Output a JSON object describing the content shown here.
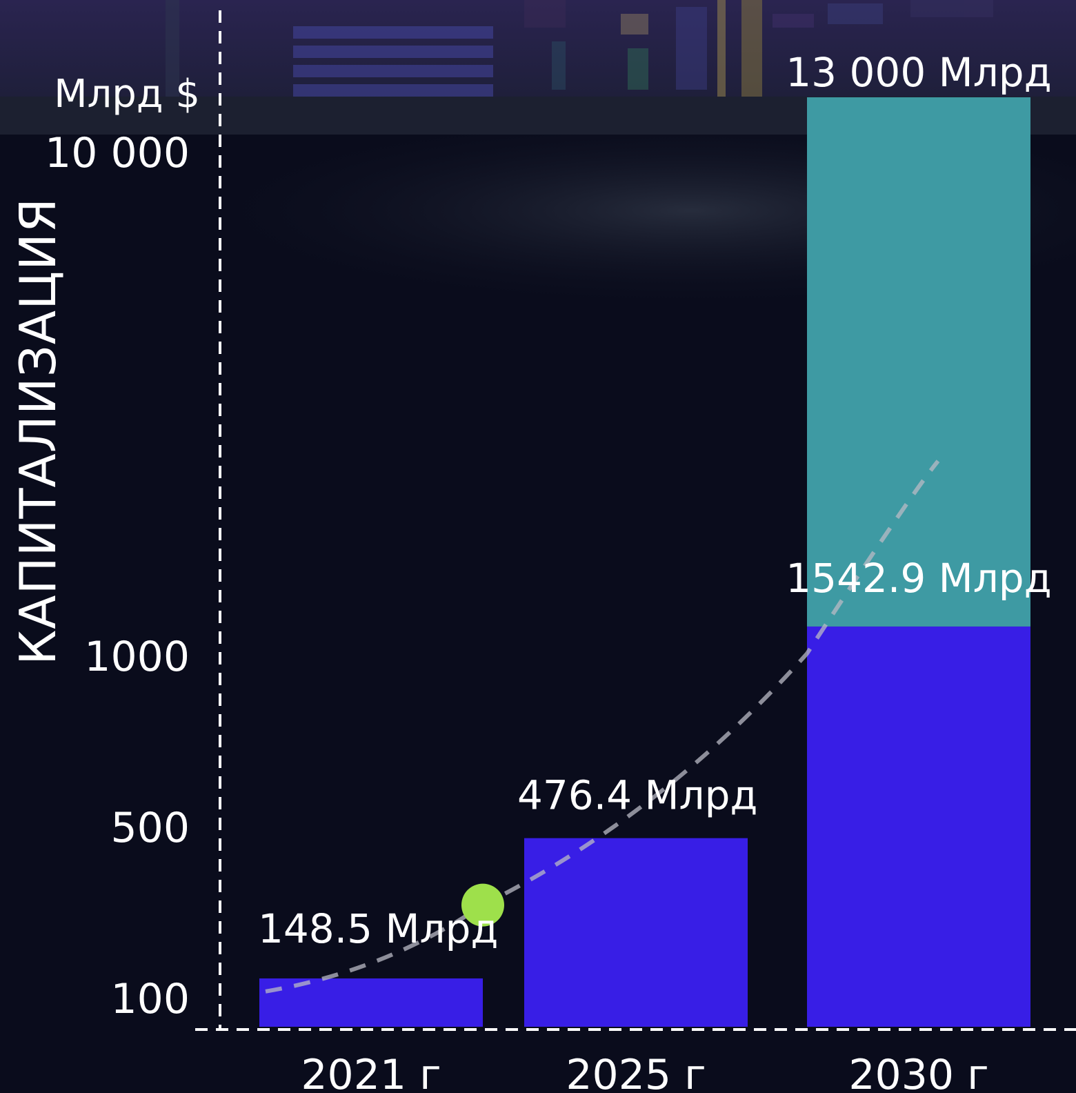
{
  "chart_data": {
    "type": "bar",
    "categories": [
      "2021 г",
      "2025 г",
      "2030 г"
    ],
    "values": [
      148.5,
      476.4,
      1542.9
    ],
    "extension": {
      "category": "2030 г",
      "from": 1542.9,
      "to": 13000
    },
    "value_labels": [
      "148.5 Млрд",
      "476.4 Млрд",
      "1542.9 Млрд"
    ],
    "extension_label": "13 000 Млрд",
    "ylabel": "КАПИТАЛИЗАЦИЯ",
    "yunit": "Млрд $",
    "yticks": [
      {
        "value": 100,
        "label": "100"
      },
      {
        "value": 500,
        "label": "500"
      },
      {
        "value": 1000,
        "label": "1000"
      },
      {
        "value": 10000,
        "label": "10 000"
      }
    ],
    "ylim": [
      80,
      13000
    ],
    "trend_marker_value": 320,
    "grid": false,
    "colors": {
      "background": "#0a0c1c",
      "bar": "#381ee6",
      "extension": "#3e9aa3",
      "marker": "#9ee04b",
      "axis": "#ffffff",
      "trend": "#b9b9c4"
    }
  }
}
